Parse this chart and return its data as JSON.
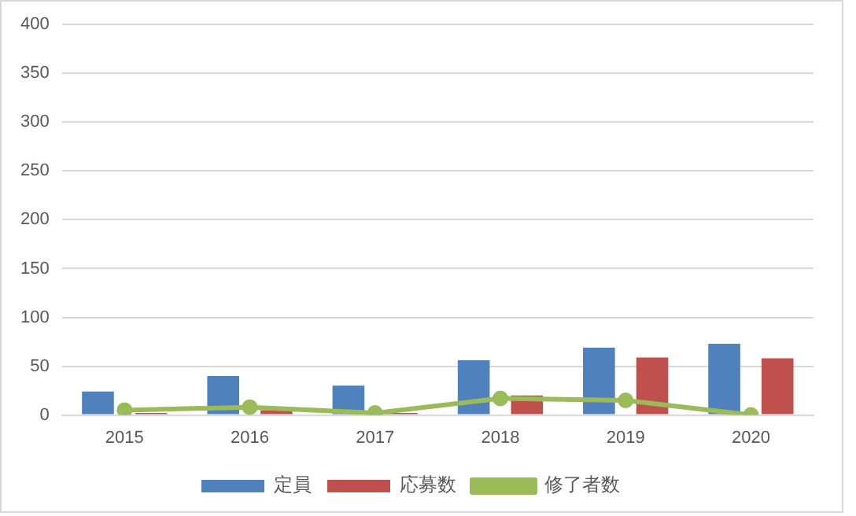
{
  "chart_data": {
    "type": "bar",
    "categories": [
      "2015",
      "2016",
      "2017",
      "2018",
      "2019",
      "2020"
    ],
    "series": [
      {
        "name": "定員",
        "color": "#4f81bd",
        "values": [
          24,
          40,
          30,
          56,
          69,
          73
        ]
      },
      {
        "name": "応募数",
        "color": "#c0504d",
        "values": [
          2,
          5,
          2,
          20,
          59,
          58
        ]
      },
      {
        "name": "修了者数",
        "type": "line",
        "color": "#9bbb59",
        "values": [
          5,
          8,
          2,
          17,
          15,
          0
        ]
      }
    ],
    "ylim": [
      0,
      400
    ],
    "yticks": [
      0,
      50,
      100,
      150,
      200,
      250,
      300,
      350,
      400
    ],
    "grid": "y",
    "legend": "bottom",
    "marker": "circle"
  }
}
